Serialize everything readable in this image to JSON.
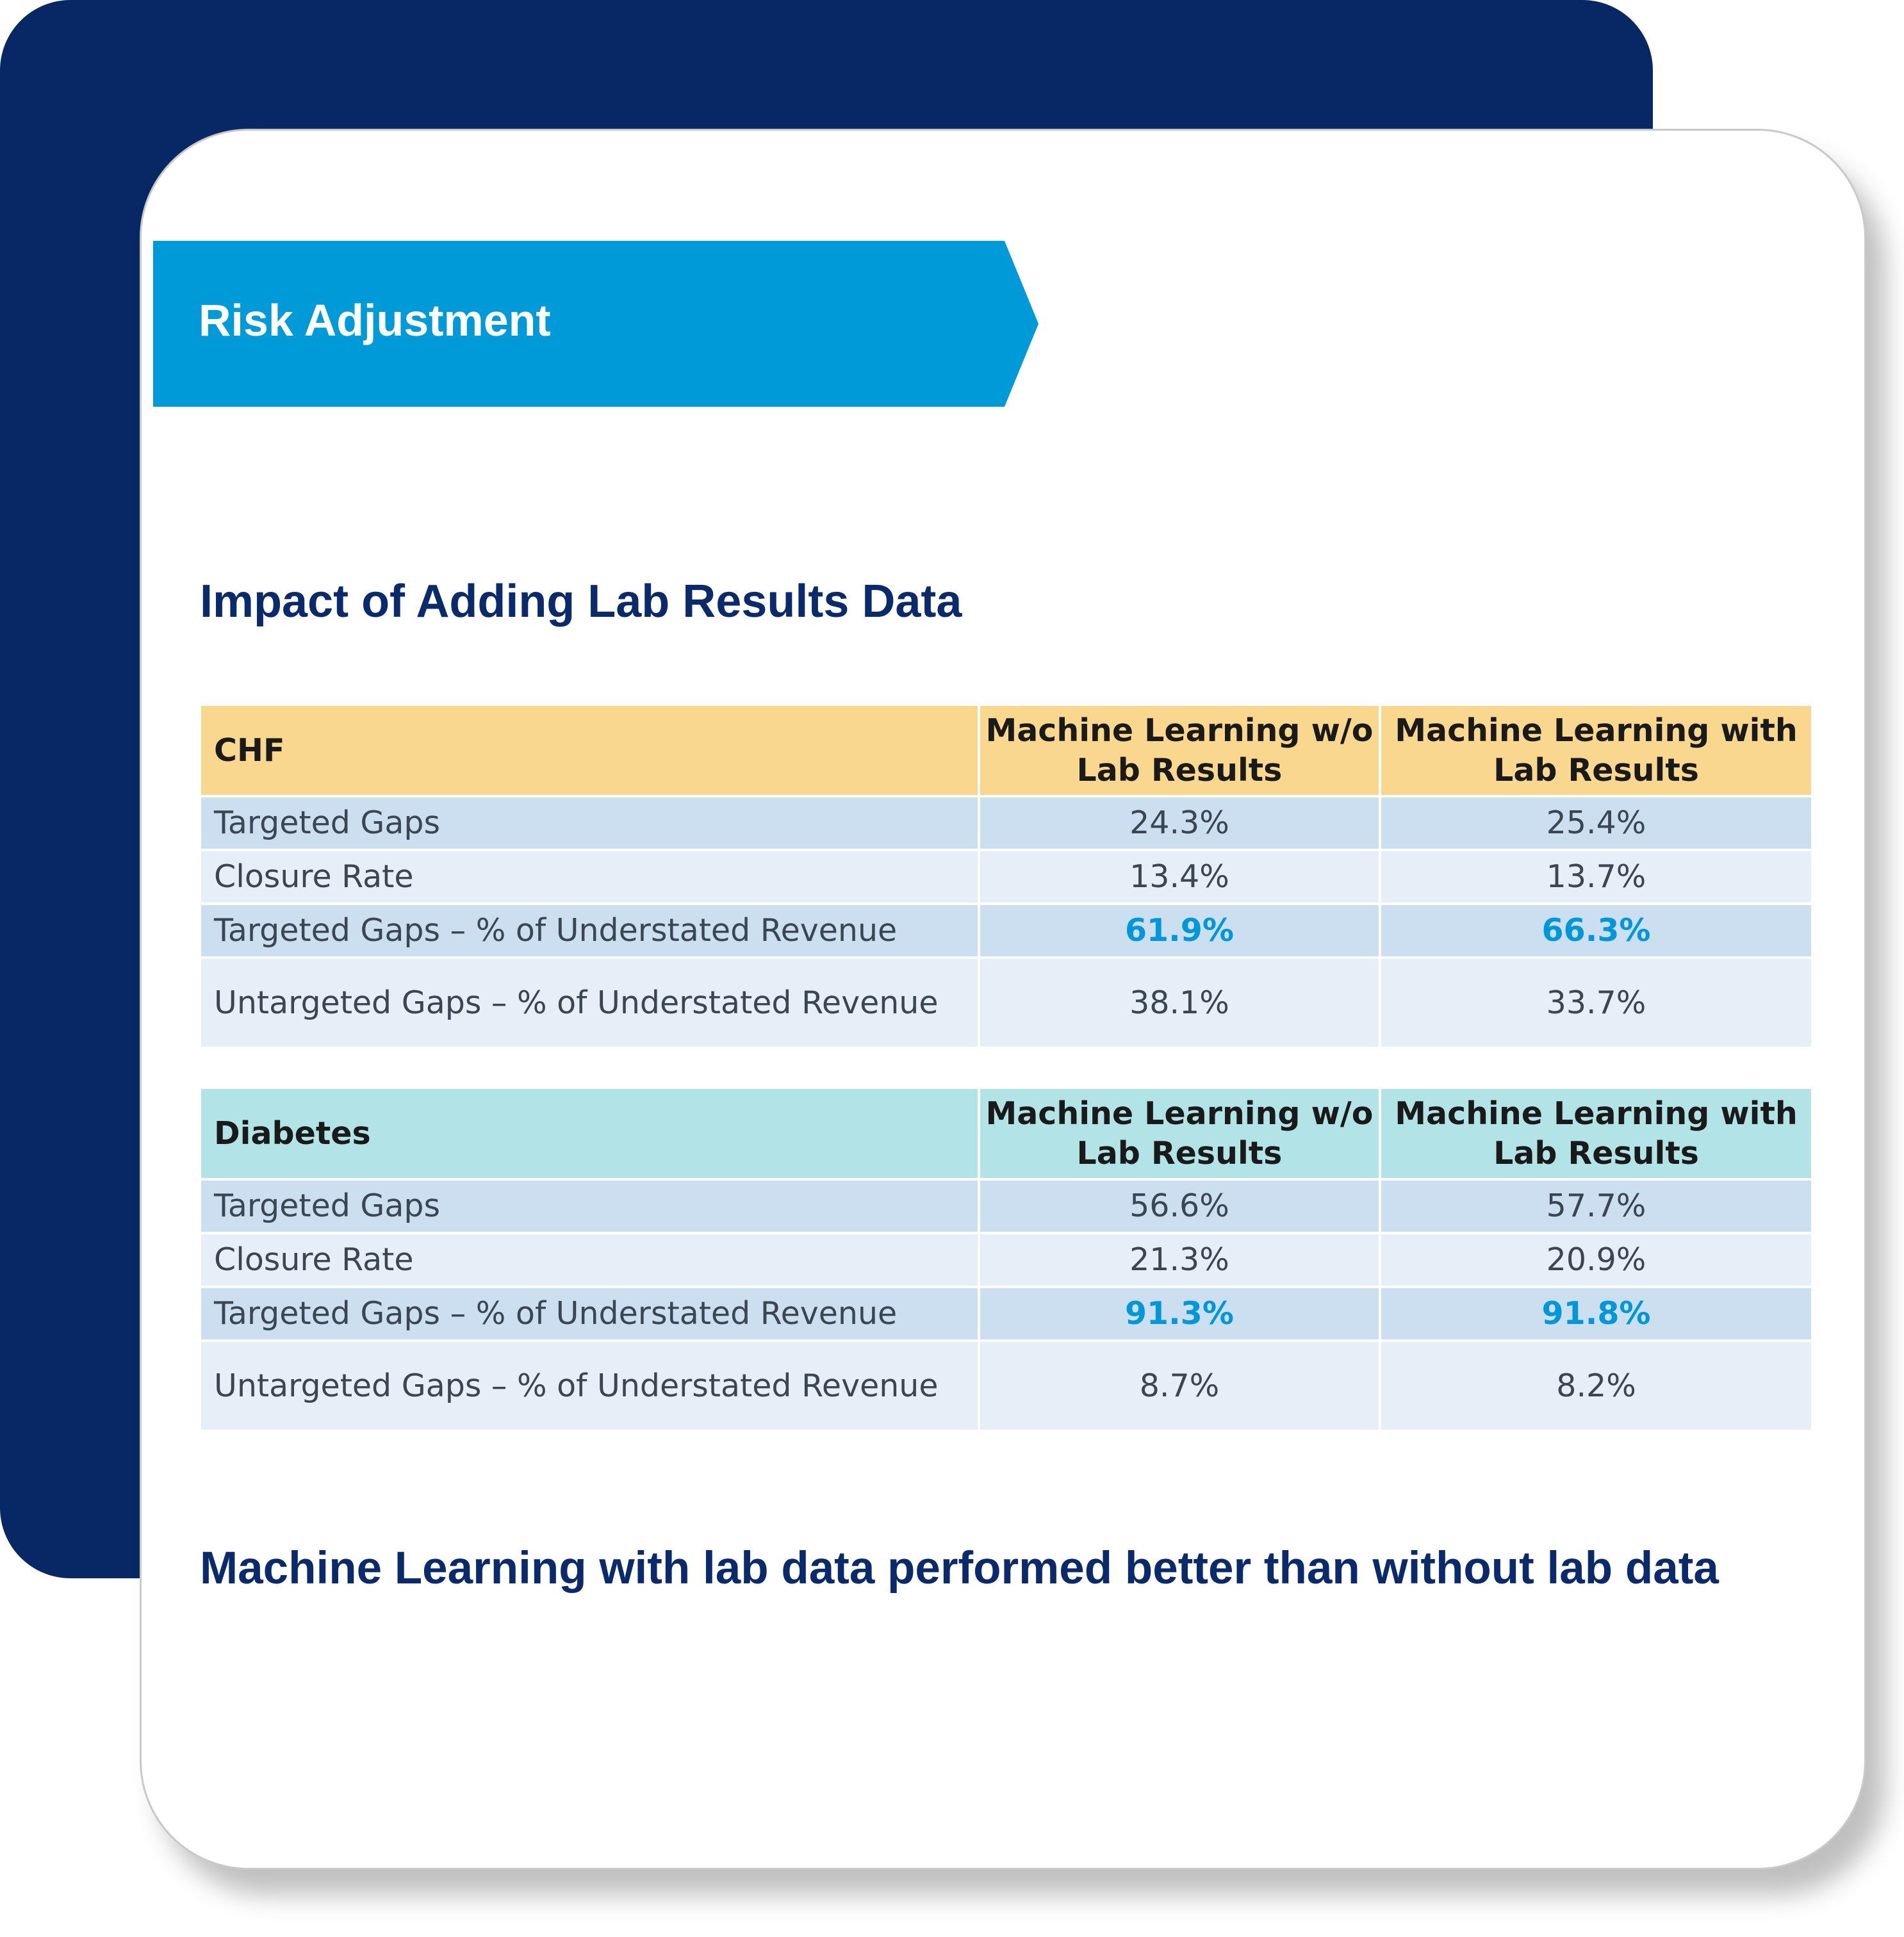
{
  "banner": {
    "title": "Risk Adjustment"
  },
  "heading": "Impact of Adding Lab Results Data",
  "tables": [
    {
      "name": "CHF",
      "columns": [
        "Machine Learning w/o Lab Results",
        "Machine Learning with Lab Results"
      ],
      "rows": [
        {
          "label": "Targeted Gaps",
          "values": [
            "24.3%",
            "25.4%"
          ],
          "highlight": false
        },
        {
          "label": "Closure Rate",
          "values": [
            "13.4%",
            "13.7%"
          ],
          "highlight": false
        },
        {
          "label": "Targeted Gaps – % of Understated Revenue",
          "values": [
            "61.9%",
            "66.3%"
          ],
          "highlight": true
        },
        {
          "label": "Untargeted Gaps – % of Understated Revenue",
          "values": [
            "38.1%",
            "33.7%"
          ],
          "highlight": false
        }
      ]
    },
    {
      "name": "Diabetes",
      "columns": [
        "Machine Learning w/o Lab Results",
        "Machine Learning with Lab Results"
      ],
      "rows": [
        {
          "label": "Targeted Gaps",
          "values": [
            "56.6%",
            "57.7%"
          ],
          "highlight": false
        },
        {
          "label": "Closure Rate",
          "values": [
            "21.3%",
            "20.9%"
          ],
          "highlight": false
        },
        {
          "label": "Targeted Gaps – % of Understated Revenue",
          "values": [
            "91.3%",
            "91.8%"
          ],
          "highlight": true
        },
        {
          "label": "Untargeted Gaps – % of Understated Revenue",
          "values": [
            "8.7%",
            "8.2%"
          ],
          "highlight": false
        }
      ]
    }
  ],
  "conclusion": "Machine Learning with lab data performed better than without lab data",
  "colors": {
    "navy": "#082865",
    "banner": "#009ad8",
    "highlight": "#0097d8",
    "chf_header": "#f9d78f",
    "diabetes_header": "#b2e3e6",
    "row_dark": "#ccdff0",
    "row_light": "#e6eef8"
  }
}
